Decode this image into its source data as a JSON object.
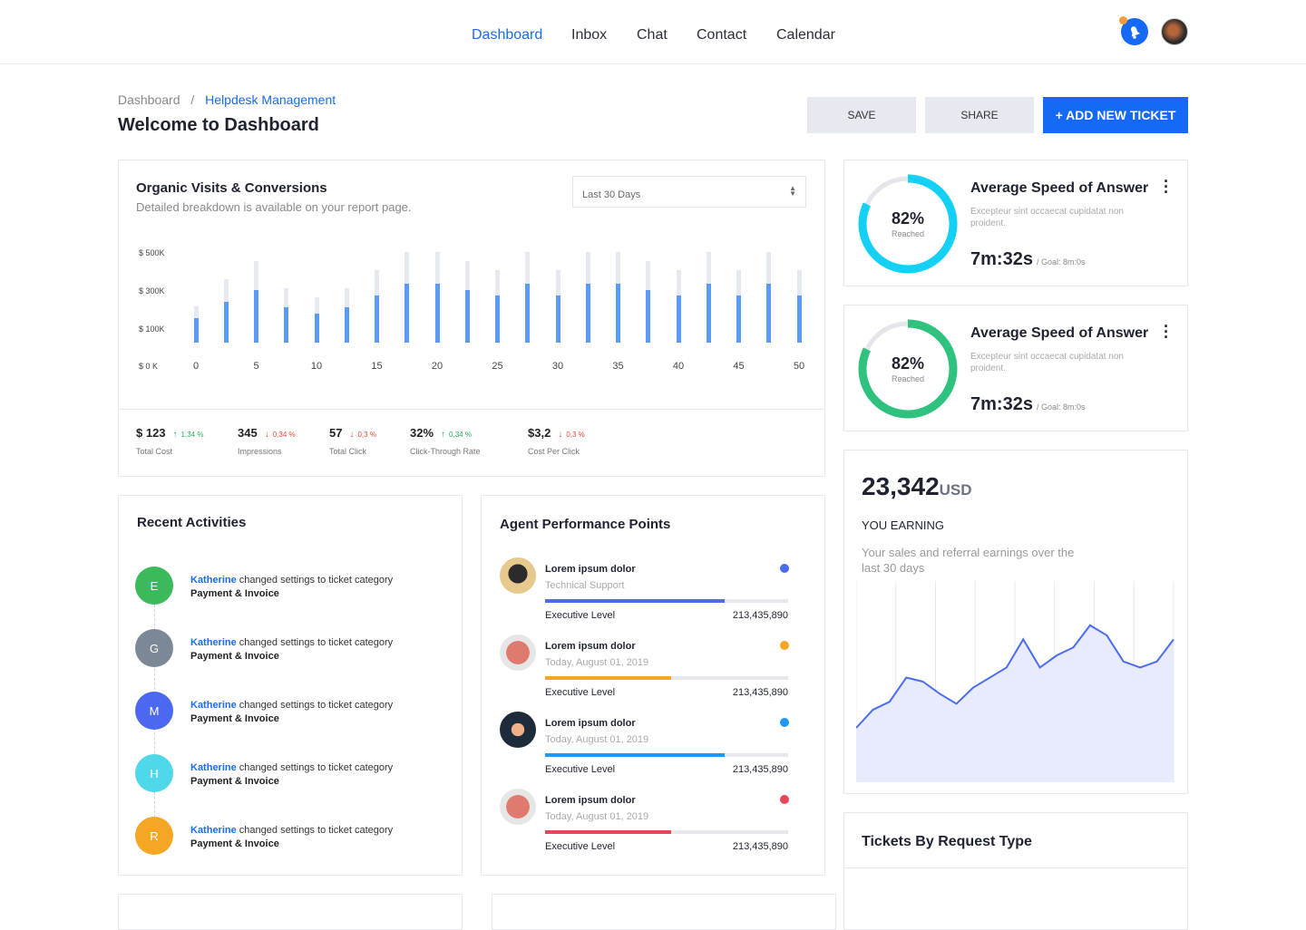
{
  "nav": {
    "items": [
      "Dashboard",
      "Inbox",
      "Chat",
      "Contact",
      "Calendar"
    ],
    "active": "Dashboard",
    "icons": [
      "bell-icon",
      "user-avatar"
    ]
  },
  "breadcrumb": {
    "root": "Dashboard",
    "current": "Helpdesk Management"
  },
  "page_title": "Welcome to Dashboard",
  "buttons": {
    "save": "SAVE",
    "share": "SHARE",
    "add": "+ ADD NEW TICKET"
  },
  "colors": {
    "primary": "#1569f5",
    "cyan": "#14d0f5",
    "green": "#2ec27e"
  },
  "visits": {
    "title": "Organic Visits & Conversions",
    "subtitle": "Detailed breakdown is available on your report page.",
    "range": "Last 30 Days",
    "stats": [
      {
        "value": "$ 123",
        "change": "1,34 %",
        "dir": "up",
        "label": "Total Cost"
      },
      {
        "value": "345",
        "change": "0,34 %",
        "dir": "down",
        "label": "Impressions"
      },
      {
        "value": "57",
        "change": "0,3 %",
        "dir": "down",
        "label": "Total Click"
      },
      {
        "value": "32%",
        "change": "0,34 %",
        "dir": "up",
        "label": "Click-Through Rate"
      },
      {
        "value": "$3,2",
        "change": "0,3 %",
        "dir": "down",
        "label": "Cost Per Click"
      }
    ]
  },
  "chart_data": [
    {
      "type": "bar",
      "ytick_labels": [
        "$ 500K",
        "$ 300K",
        "$ 100K",
        "$ 0 K"
      ],
      "xtick_labels": [
        "0",
        "5",
        "10",
        "15",
        "20",
        "25",
        "30",
        "35",
        "40",
        "45",
        "50"
      ],
      "x": [
        0,
        2.5,
        5,
        7.5,
        10,
        12.5,
        15,
        17.5,
        20,
        22.5,
        25,
        27.5,
        30,
        32.5,
        35,
        37.5,
        40,
        42.5,
        45,
        47.5,
        50
      ],
      "series": [
        {
          "values": [
            160,
            250,
            310,
            220,
            185,
            220,
            280,
            345,
            345,
            310,
            280,
            345,
            280,
            345,
            345,
            310,
            280,
            345,
            280,
            345,
            280
          ],
          "color": "#5b9bf8"
        },
        {
          "values": [
            225,
            365,
            460,
            320,
            270,
            320,
            415,
            510,
            510,
            460,
            415,
            510,
            415,
            510,
            510,
            460,
            415,
            510,
            415,
            510,
            415
          ],
          "color": "#e6e9ef"
        }
      ],
      "grid": false
    },
    {
      "type": "area",
      "values": [
        27,
        36,
        40,
        52,
        50,
        44,
        39,
        47,
        52,
        57,
        71,
        57,
        63,
        67,
        78,
        73,
        60,
        57,
        60,
        71
      ],
      "color": "#4a6cf0",
      "fill": "#e8ebfb",
      "grid": "vertical"
    }
  ],
  "speed_cards": [
    {
      "percent": 82,
      "percent_label": "82%",
      "reached": "Reached",
      "title": "Average Speed of Answer",
      "desc": "Excepteur sint occaecat cupidatat non proident.",
      "time": "7m:32s",
      "goal": "/ Goal: 8m:0s",
      "color": "#14d0f5"
    },
    {
      "percent": 82,
      "percent_label": "82%",
      "reached": "Reached",
      "title": "Average Speed of Answer",
      "desc": "Excepteur sint occaecat cupidatat non proident.",
      "time": "7m:32s",
      "goal": "/ Goal: 8m:0s",
      "color": "#2ec27e"
    }
  ],
  "earning": {
    "amount": "23,342",
    "currency": "USD",
    "label": "YOU EARNING",
    "desc": "Your sales and referral earnings over the last 30 days"
  },
  "tickets": {
    "title": "Tickets By Request Type"
  },
  "activities": {
    "title": "Recent Activities",
    "items": [
      {
        "initial": "E",
        "color": "#3cb95a",
        "name": "Katherine",
        "text": " changed settings to ticket category",
        "detail": "Payment & Invoice"
      },
      {
        "initial": "G",
        "color": "#7d8896",
        "name": "Katherine",
        "text": " changed settings to ticket category",
        "detail": "Payment & Invoice"
      },
      {
        "initial": "M",
        "color": "#4c68f0",
        "name": "Katherine",
        "text": " changed settings to ticket category",
        "detail": "Payment & Invoice"
      },
      {
        "initial": "H",
        "color": "#4fd8ea",
        "name": "Katherine",
        "text": " changed settings to ticket category",
        "detail": "Payment & Invoice"
      },
      {
        "initial": "R",
        "color": "#f5a623",
        "name": "Katherine",
        "text": " changed settings to ticket category",
        "detail": "Payment & Invoice"
      }
    ]
  },
  "agents": {
    "title": "Agent Performance Points",
    "items": [
      {
        "name": "Lorem ipsum dolor",
        "sub": "Technical Support",
        "level": "Executive Level",
        "points": "213,435,890",
        "progress": 74,
        "color": "#4a6cf0"
      },
      {
        "name": "Lorem ipsum dolor",
        "sub": "Today, August 01, 2019",
        "level": "Executive Level",
        "points": "213,435,890",
        "progress": 52,
        "color": "#f5a623"
      },
      {
        "name": "Lorem ipsum dolor",
        "sub": "Today, August 01, 2019",
        "level": "Executive Level",
        "points": "213,435,890",
        "progress": 74,
        "color": "#2196f3"
      },
      {
        "name": "Lorem ipsum dolor",
        "sub": "Today, August 01, 2019",
        "level": "Executive Level",
        "points": "213,435,890",
        "progress": 52,
        "color": "#e8455a"
      }
    ]
  }
}
